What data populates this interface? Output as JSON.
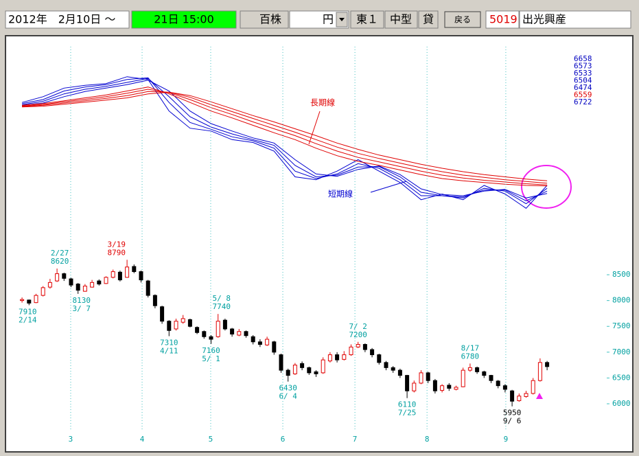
{
  "toolbar": {
    "period": "2012年　2月10日 ～",
    "end": "21日 15:00",
    "unit": "百株",
    "currency": "円",
    "market": "東１",
    "size": "中型",
    "lending": "貸",
    "back": "戻る",
    "code": "5019",
    "name": "出光興産"
  },
  "chart_data": [
    {
      "type": "line",
      "x": [
        0,
        6,
        12,
        18,
        24,
        30,
        36,
        42,
        48,
        54,
        60,
        66,
        72,
        78,
        84,
        90,
        96,
        102,
        108,
        114,
        120,
        126,
        132,
        138,
        144,
        150
      ],
      "xlim": [
        -1,
        155
      ],
      "ylim": [
        6000,
        8700
      ],
      "series": [
        {
          "color": "#0000d0",
          "values": [
            8050,
            8150,
            8300,
            8350,
            8380,
            8500,
            8450,
            7900,
            7600,
            7550,
            7400,
            7350,
            7200,
            6750,
            6700,
            6850,
            7050,
            6850,
            6650,
            6350,
            6450,
            6350,
            6600,
            6450,
            6200,
            6600
          ]
        },
        {
          "color": "#0000d0",
          "values": [
            8030,
            8100,
            8250,
            8320,
            8360,
            8450,
            8480,
            8050,
            7700,
            7580,
            7450,
            7380,
            7250,
            6850,
            6720,
            6800,
            6980,
            6900,
            6700,
            6420,
            6420,
            6380,
            6550,
            6500,
            6280,
            6550
          ]
        },
        {
          "color": "#0000d0",
          "values": [
            8010,
            8070,
            8200,
            8280,
            8330,
            8400,
            8470,
            8150,
            7800,
            7620,
            7500,
            7400,
            7300,
            6950,
            6750,
            6780,
            6920,
            6930,
            6750,
            6480,
            6420,
            6400,
            6520,
            6520,
            6330,
            6500
          ]
        },
        {
          "color": "#0000d0",
          "values": [
            8000,
            8040,
            8150,
            8240,
            8300,
            8360,
            8440,
            8250,
            7900,
            7680,
            7550,
            7430,
            7340,
            7050,
            6800,
            6760,
            6880,
            6940,
            6790,
            6540,
            6440,
            6420,
            6500,
            6530,
            6380,
            6460
          ]
        },
        {
          "color": "#e00000",
          "values": [
            8000,
            8030,
            8080,
            8130,
            8180,
            8250,
            8320,
            8200,
            8050,
            7900,
            7780,
            7650,
            7520,
            7400,
            7250,
            7120,
            7020,
            6950,
            6870,
            6790,
            6720,
            6680,
            6650,
            6620,
            6600,
            6590
          ]
        },
        {
          "color": "#e00000",
          "values": [
            7990,
            8015,
            8060,
            8105,
            8150,
            8210,
            8280,
            8220,
            8100,
            7960,
            7840,
            7710,
            7590,
            7470,
            7330,
            7200,
            7090,
            7010,
            6930,
            6850,
            6780,
            6730,
            6690,
            6660,
            6630,
            6610
          ]
        },
        {
          "color": "#e00000",
          "values": [
            7980,
            8000,
            8040,
            8080,
            8120,
            8170,
            8240,
            8230,
            8140,
            8010,
            7890,
            7770,
            7650,
            7530,
            7400,
            7270,
            7160,
            7070,
            6990,
            6910,
            6840,
            6780,
            6740,
            6700,
            6670,
            6640
          ]
        },
        {
          "color": "#e00000",
          "values": [
            7970,
            7985,
            8020,
            8055,
            8090,
            8130,
            8200,
            8230,
            8170,
            8060,
            7940,
            7820,
            7710,
            7590,
            7470,
            7340,
            7230,
            7130,
            7050,
            6970,
            6900,
            6840,
            6790,
            6750,
            6710,
            6680
          ]
        }
      ],
      "end_labels": [
        {
          "value": 6658,
          "color": "#0000c0"
        },
        {
          "value": 6573,
          "color": "#0000c0"
        },
        {
          "value": 6533,
          "color": "#0000c0"
        },
        {
          "value": 6504,
          "color": "#0000c0"
        },
        {
          "value": 6474,
          "color": "#0000c0"
        },
        {
          "value": 6559,
          "color": "#e00000"
        },
        {
          "value": 6722,
          "color": "#0000c0"
        }
      ],
      "annotations": [
        {
          "text": "長期線",
          "color": "#e00000"
        },
        {
          "text": "短期線",
          "color": "#0000d0"
        }
      ]
    },
    {
      "type": "candlestick",
      "x": [
        0,
        2,
        4,
        6,
        8,
        10,
        12,
        14,
        16,
        18,
        20,
        22,
        24,
        26,
        28,
        30,
        32,
        34,
        36,
        38,
        40,
        42,
        44,
        46,
        48,
        50,
        52,
        54,
        56,
        58,
        60,
        62,
        64,
        66,
        68,
        70,
        72,
        74,
        76,
        78,
        80,
        82,
        84,
        86,
        88,
        90,
        92,
        94,
        96,
        98,
        100,
        102,
        104,
        106,
        108,
        110,
        112,
        114,
        116,
        118,
        120,
        122,
        124,
        126,
        128,
        130,
        132,
        134,
        136,
        138,
        140,
        142,
        144,
        146,
        148,
        150
      ],
      "open": [
        8000,
        8010,
        7960,
        8100,
        8260,
        8380,
        8520,
        8420,
        8320,
        8180,
        8260,
        8380,
        8330,
        8450,
        8550,
        8450,
        8660,
        8560,
        8380,
        8100,
        7880,
        7600,
        7450,
        7580,
        7630,
        7480,
        7400,
        7300,
        7300,
        7620,
        7450,
        7330,
        7400,
        7300,
        7200,
        7140,
        7200,
        6950,
        6650,
        6580,
        6780,
        6700,
        6620,
        6600,
        6830,
        6950,
        6860,
        6950,
        7100,
        7150,
        7050,
        6950,
        6800,
        6700,
        6650,
        6550,
        6250,
        6400,
        6600,
        6450,
        6260,
        6360,
        6280,
        6330,
        6650,
        6700,
        6620,
        6550,
        6440,
        6350,
        6250,
        6060,
        6140,
        6200,
        6450,
        6800
      ],
      "high": [
        8060,
        8020,
        8130,
        8280,
        8420,
        8620,
        8540,
        8440,
        8340,
        8320,
        8400,
        8410,
        8470,
        8600,
        8580,
        8790,
        8700,
        8580,
        8400,
        8120,
        7900,
        7620,
        7650,
        7720,
        7650,
        7500,
        7420,
        7330,
        7740,
        7650,
        7470,
        7450,
        7420,
        7330,
        7250,
        7300,
        7220,
        6970,
        6680,
        6790,
        6820,
        6720,
        6650,
        6900,
        7000,
        7000,
        7020,
        7150,
        7200,
        7170,
        7080,
        6970,
        6830,
        6730,
        6680,
        6560,
        6450,
        6650,
        6620,
        6480,
        6380,
        6400,
        6350,
        6700,
        6780,
        6720,
        6640,
        6560,
        6460,
        6380,
        6270,
        6200,
        6250,
        6500,
        6880,
        6830
      ],
      "low": [
        7960,
        7910,
        7950,
        8080,
        8230,
        8360,
        8380,
        8260,
        8130,
        8170,
        8250,
        8290,
        8320,
        8430,
        8370,
        8440,
        8530,
        8350,
        8060,
        7850,
        7550,
        7310,
        7420,
        7550,
        7480,
        7350,
        7260,
        7160,
        7280,
        7420,
        7300,
        7310,
        7280,
        7150,
        7100,
        7120,
        6950,
        6600,
        6430,
        6560,
        6650,
        6560,
        6520,
        6580,
        6800,
        6800,
        6840,
        6930,
        7080,
        7000,
        6900,
        6760,
        6650,
        6600,
        6500,
        6110,
        6220,
        6380,
        6400,
        6200,
        6220,
        6250,
        6260,
        6320,
        6620,
        6580,
        6500,
        6400,
        6300,
        6220,
        5950,
        6040,
        6120,
        6180,
        6430,
        6650
      ],
      "close": [
        8020,
        7950,
        8100,
        8250,
        8350,
        8520,
        8430,
        8300,
        8200,
        8280,
        8350,
        8320,
        8450,
        8560,
        8400,
        8650,
        8560,
        8400,
        8100,
        7900,
        7600,
        7420,
        7600,
        7650,
        7500,
        7380,
        7300,
        7250,
        7600,
        7450,
        7350,
        7400,
        7320,
        7200,
        7150,
        7250,
        7000,
        6650,
        6550,
        6750,
        6700,
        6600,
        6580,
        6850,
        6950,
        6850,
        6950,
        7100,
        7150,
        7050,
        6950,
        6800,
        6700,
        6650,
        6550,
        6250,
        6400,
        6600,
        6450,
        6250,
        6350,
        6300,
        6320,
        6650,
        6700,
        6620,
        6550,
        6450,
        6350,
        6280,
        6050,
        6150,
        6200,
        6450,
        6800,
        6720
      ],
      "up_color": "#e00000",
      "down_color": "#000000",
      "xlim": [
        -1,
        155
      ],
      "ylim": [
        5800,
        8900
      ],
      "yticks": [
        6000,
        6500,
        7000,
        7500,
        8000,
        8500
      ],
      "xticks": [
        {
          "value": 13.9,
          "label": "3"
        },
        {
          "value": 34.3,
          "label": "4"
        },
        {
          "value": 53.9,
          "label": "5"
        },
        {
          "value": 74.5,
          "label": "6"
        },
        {
          "value": 95.1,
          "label": "7"
        },
        {
          "value": 115.7,
          "label": "8"
        },
        {
          "value": 138.2,
          "label": "9"
        }
      ],
      "grid": true,
      "annotations": [
        {
          "date": "2/14",
          "price": 7910,
          "kind": "low",
          "x": 1.6,
          "color": "#00a0a0"
        },
        {
          "date": "2/27",
          "price": 8620,
          "kind": "high",
          "x": 10.8,
          "color": "#00a0a0"
        },
        {
          "date": "3/ 7",
          "price": 8130,
          "kind": "low",
          "x": 17,
          "color": "#00a0a0"
        },
        {
          "date": "3/19",
          "price": 8790,
          "kind": "high",
          "x": 27,
          "color": "#e00000"
        },
        {
          "date": "4/11",
          "price": 7310,
          "kind": "low",
          "x": 42,
          "color": "#00a0a0"
        },
        {
          "date": "5/ 1",
          "price": 7160,
          "kind": "low",
          "x": 54,
          "color": "#00a0a0"
        },
        {
          "date": "5/ 8",
          "price": 7740,
          "kind": "high",
          "x": 57,
          "color": "#00a0a0"
        },
        {
          "date": "6/ 4",
          "price": 6430,
          "kind": "low",
          "x": 76,
          "color": "#00a0a0"
        },
        {
          "date": "7/ 2",
          "price": 7200,
          "kind": "high",
          "x": 96,
          "color": "#00a0a0"
        },
        {
          "date": "7/25",
          "price": 6110,
          "kind": "low",
          "x": 110,
          "color": "#00a0a0"
        },
        {
          "date": "8/17",
          "price": 6780,
          "kind": "high",
          "x": 128,
          "color": "#00a0a0"
        },
        {
          "date": "9/ 6",
          "price": 5950,
          "kind": "low",
          "x": 140,
          "color": "#000000"
        }
      ]
    }
  ]
}
